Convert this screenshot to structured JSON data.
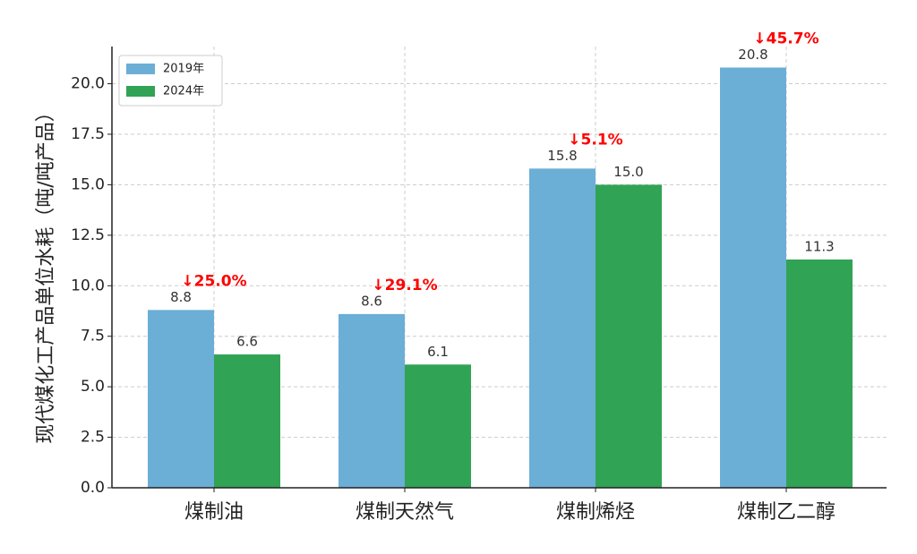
{
  "chart_data": {
    "type": "bar",
    "y_label": "现代煤化工产品单位水耗（吨/吨产品）",
    "categories": [
      "煤制油",
      "煤制天然气",
      "煤制烯烃",
      "煤制乙二醇"
    ],
    "series": [
      {
        "name": "2019年",
        "color": "#6baed6",
        "values": [
          8.8,
          8.6,
          15.8,
          20.8
        ],
        "value_labels": [
          "8.8",
          "8.6",
          "15.8",
          "20.8"
        ]
      },
      {
        "name": "2024年",
        "color": "#31a354",
        "values": [
          6.6,
          6.1,
          15.0,
          11.3
        ],
        "value_labels": [
          "6.6",
          "6.1",
          "15.0",
          "11.3"
        ]
      }
    ],
    "annotations": [
      "↓25.0%",
      "↓29.1%",
      "↓5.1%",
      "↓45.7%"
    ],
    "annotation_color": "#ff0000",
    "ylim": [
      0,
      21.84
    ],
    "yticks": [
      {
        "value": 0,
        "label": "0.0"
      },
      {
        "value": 2.5,
        "label": "2.5"
      },
      {
        "value": 5,
        "label": "5.0"
      },
      {
        "value": 7.5,
        "label": "7.5"
      },
      {
        "value": 10,
        "label": "10.0"
      },
      {
        "value": 12.5,
        "label": "12.5"
      },
      {
        "value": 15,
        "label": "15.0"
      },
      {
        "value": 17.5,
        "label": "17.5"
      },
      {
        "value": 20,
        "label": "20.0"
      }
    ],
    "grid": true,
    "legend": "upper left"
  }
}
